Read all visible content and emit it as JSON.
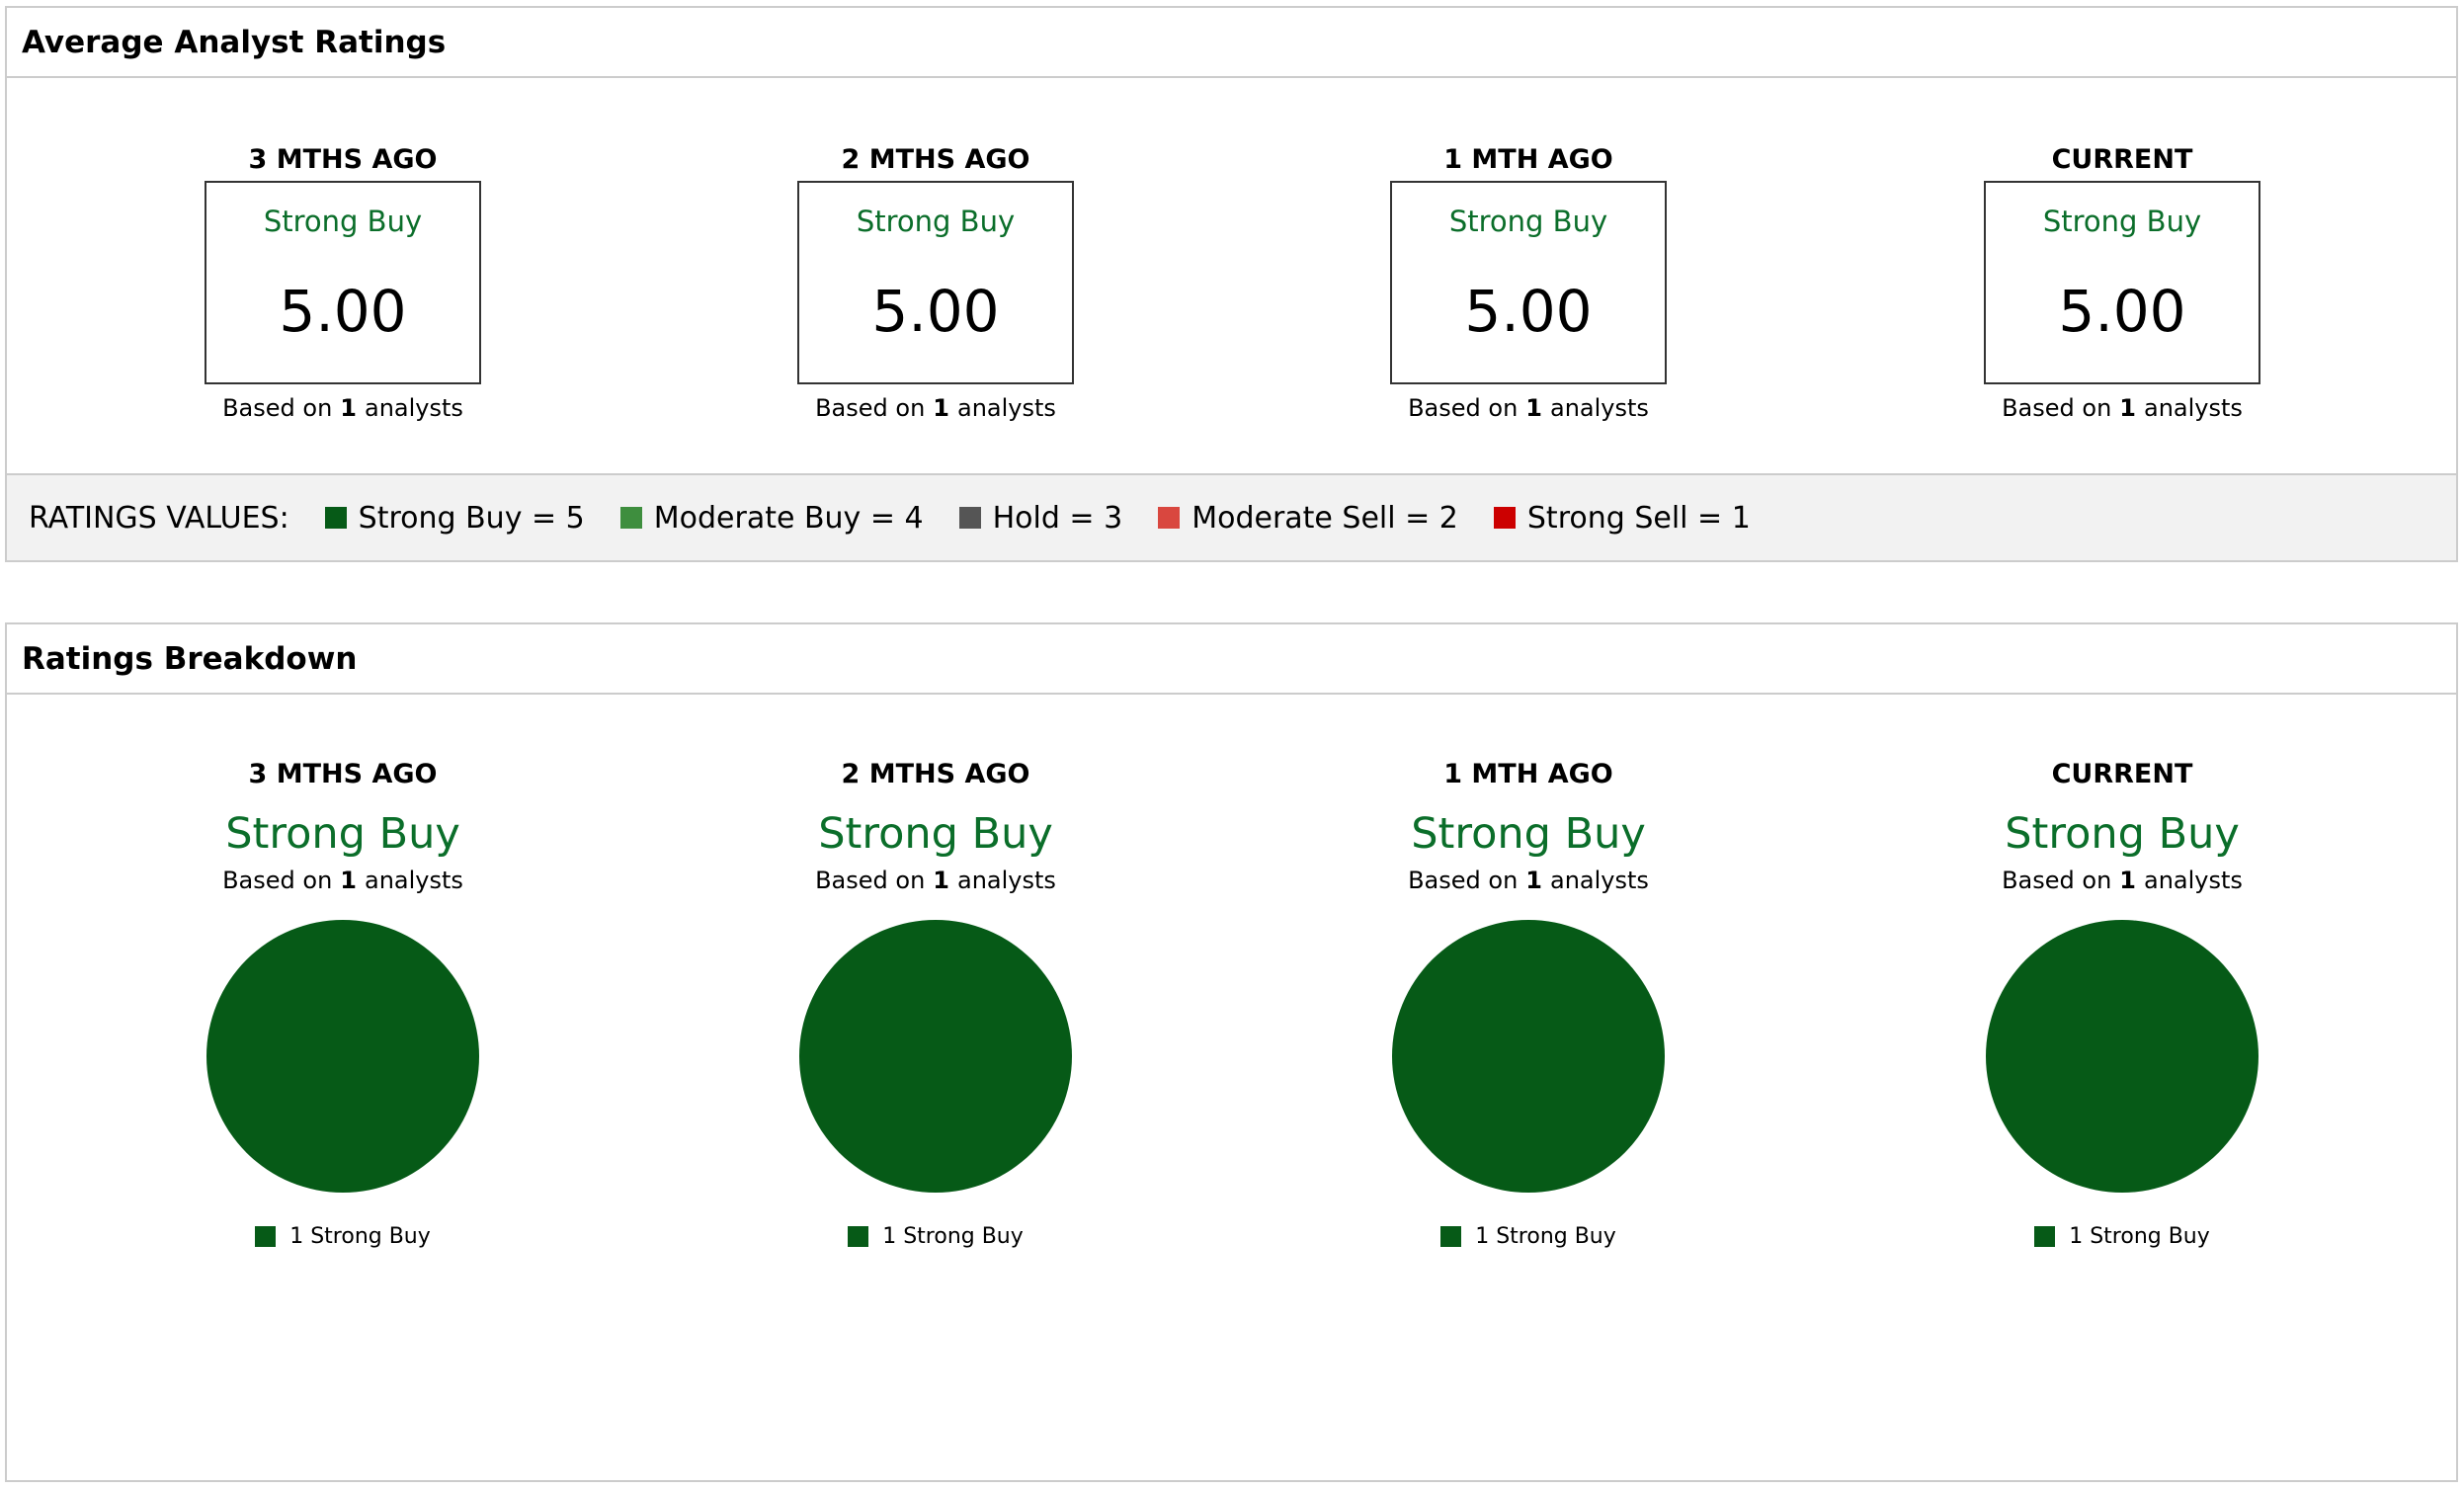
{
  "average_ratings": {
    "title": "Average Analyst Ratings",
    "periods": [
      {
        "label": "3 MTHS AGO",
        "rating": "Strong Buy",
        "score": "5.00",
        "based_on": "Based on",
        "count": 1,
        "analysts": "analysts"
      },
      {
        "label": "2 MTHS AGO",
        "rating": "Strong Buy",
        "score": "5.00",
        "based_on": "Based on",
        "count": 1,
        "analysts": "analysts"
      },
      {
        "label": "1 MTH AGO",
        "rating": "Strong Buy",
        "score": "5.00",
        "based_on": "Based on",
        "count": 1,
        "analysts": "analysts"
      },
      {
        "label": "CURRENT",
        "rating": "Strong Buy",
        "score": "5.00",
        "based_on": "Based on",
        "count": 1,
        "analysts": "analysts"
      }
    ]
  },
  "ratings_values": {
    "title": "RATINGS VALUES:",
    "items": [
      {
        "label": "Strong Buy = 5",
        "color": "#065a17"
      },
      {
        "label": "Moderate Buy = 4",
        "color": "#3e8e3e"
      },
      {
        "label": "Hold = 3",
        "color": "#555555"
      },
      {
        "label": "Moderate Sell = 2",
        "color": "#d9473f"
      },
      {
        "label": "Strong Sell = 1",
        "color": "#cc0000"
      }
    ]
  },
  "ratings_breakdown": {
    "title": "Ratings Breakdown",
    "periods": [
      {
        "label": "3 MTHS AGO",
        "rating": "Strong Buy",
        "based_on": "Based on",
        "count": 1,
        "analysts": "analysts"
      },
      {
        "label": "2 MTHS AGO",
        "rating": "Strong Buy",
        "based_on": "Based on",
        "count": 1,
        "analysts": "analysts"
      },
      {
        "label": "1 MTH AGO",
        "rating": "Strong Buy",
        "based_on": "Based on",
        "count": 1,
        "analysts": "analysts"
      },
      {
        "label": "CURRENT",
        "rating": "Strong Buy",
        "based_on": "Based on",
        "count": 1,
        "analysts": "analysts"
      }
    ]
  },
  "chart_data": [
    {
      "type": "pie",
      "categories": [
        "Strong Buy"
      ],
      "values": [
        1
      ],
      "colors": [
        "#065a17"
      ]
    },
    {
      "type": "pie",
      "categories": [
        "Strong Buy"
      ],
      "values": [
        1
      ],
      "colors": [
        "#065a17"
      ]
    },
    {
      "type": "pie",
      "categories": [
        "Strong Buy"
      ],
      "values": [
        1
      ],
      "colors": [
        "#065a17"
      ]
    },
    {
      "type": "pie",
      "categories": [
        "Strong Buy"
      ],
      "values": [
        1
      ],
      "colors": [
        "#065a17"
      ]
    }
  ]
}
